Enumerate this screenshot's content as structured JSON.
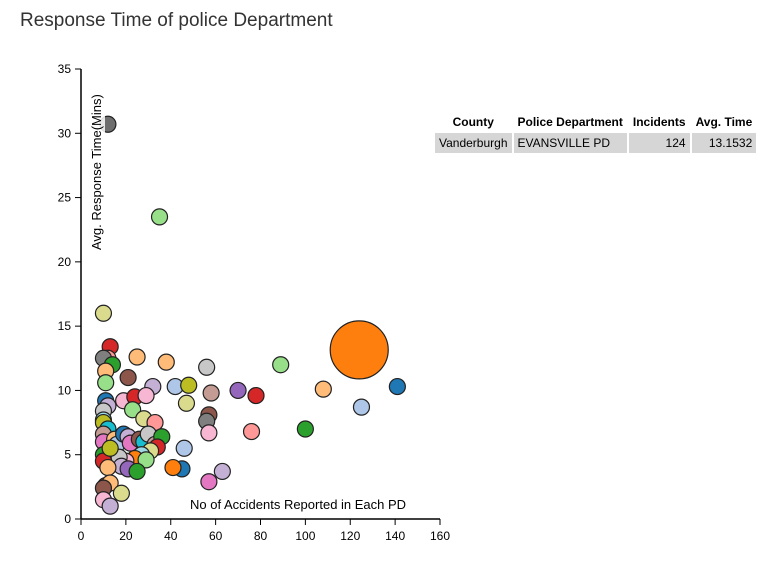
{
  "chart_data": {
    "type": "scatter",
    "title": "Response Time of police Department",
    "xlabel": "No of Accidents Reported in Each PD",
    "ylabel": "Avg. Response Time(Mins)",
    "xlim": [
      0,
      160
    ],
    "ylim": [
      0,
      35
    ],
    "xticks": [
      0,
      20,
      40,
      60,
      80,
      100,
      120,
      140,
      160
    ],
    "yticks": [
      0,
      5,
      10,
      15,
      20,
      25,
      30,
      35
    ],
    "grid": false,
    "points": [
      {
        "x": 12,
        "y": 30.7,
        "color": "#6e6e6e"
      },
      {
        "x": 35,
        "y": 23.5,
        "color": "#98df8a"
      },
      {
        "x": 10,
        "y": 16.0,
        "color": "#dbdb8d"
      },
      {
        "x": 13,
        "y": 13.4,
        "color": "#d62728"
      },
      {
        "x": 12,
        "y": 12.5,
        "color": "#ff9896"
      },
      {
        "x": 10,
        "y": 12.5,
        "color": "#7f7f7f"
      },
      {
        "x": 14,
        "y": 12.0,
        "color": "#2ca02c"
      },
      {
        "x": 11,
        "y": 11.5,
        "color": "#ffbb78"
      },
      {
        "x": 11,
        "y": 10.6,
        "color": "#98df8a"
      },
      {
        "x": 25,
        "y": 12.6,
        "color": "#ffbb78"
      },
      {
        "x": 38,
        "y": 12.2,
        "color": "#ffbb78"
      },
      {
        "x": 56,
        "y": 11.8,
        "color": "#c7c7c7"
      },
      {
        "x": 89,
        "y": 12.0,
        "color": "#98df8a"
      },
      {
        "x": 21,
        "y": 11.0,
        "color": "#8c564b"
      },
      {
        "x": 32,
        "y": 10.3,
        "color": "#c5b0d5"
      },
      {
        "x": 42,
        "y": 10.3,
        "color": "#aec7e8"
      },
      {
        "x": 48,
        "y": 10.4,
        "color": "#bcbd22"
      },
      {
        "x": 58,
        "y": 9.8,
        "color": "#c49c94"
      },
      {
        "x": 70,
        "y": 10.0,
        "color": "#9467bd"
      },
      {
        "x": 78,
        "y": 9.6,
        "color": "#d62728"
      },
      {
        "x": 108,
        "y": 10.1,
        "color": "#ffbb78"
      },
      {
        "x": 141,
        "y": 10.3,
        "color": "#1f77b4"
      },
      {
        "x": 125,
        "y": 8.7,
        "color": "#aec7e8"
      },
      {
        "x": 124,
        "y": 13.1532,
        "color": "#ff7f0e",
        "highlight": true
      },
      {
        "x": 11,
        "y": 9.2,
        "color": "#1f77b4"
      },
      {
        "x": 12,
        "y": 8.8,
        "color": "#c5b0d5"
      },
      {
        "x": 10,
        "y": 8.4,
        "color": "#c7c7c7"
      },
      {
        "x": 19,
        "y": 9.2,
        "color": "#f7b6d2"
      },
      {
        "x": 24,
        "y": 9.5,
        "color": "#d62728"
      },
      {
        "x": 29,
        "y": 9.6,
        "color": "#f7b6d2"
      },
      {
        "x": 23,
        "y": 8.5,
        "color": "#98df8a"
      },
      {
        "x": 28,
        "y": 7.8,
        "color": "#dbdb8d"
      },
      {
        "x": 33,
        "y": 7.5,
        "color": "#ff9896"
      },
      {
        "x": 47,
        "y": 9.0,
        "color": "#dbdb8d"
      },
      {
        "x": 57,
        "y": 8.1,
        "color": "#8c564b"
      },
      {
        "x": 56,
        "y": 7.6,
        "color": "#7f7f7f"
      },
      {
        "x": 57,
        "y": 6.7,
        "color": "#f7b6d2"
      },
      {
        "x": 76,
        "y": 6.8,
        "color": "#ff9896"
      },
      {
        "x": 100,
        "y": 7.0,
        "color": "#2ca02c"
      },
      {
        "x": 10,
        "y": 7.7,
        "color": "#9edae5"
      },
      {
        "x": 10,
        "y": 7.5,
        "color": "#bcbd22"
      },
      {
        "x": 12,
        "y": 7.0,
        "color": "#17becf"
      },
      {
        "x": 10,
        "y": 6.6,
        "color": "#c49c94"
      },
      {
        "x": 10,
        "y": 6.0,
        "color": "#e377c2"
      },
      {
        "x": 15,
        "y": 6.2,
        "color": "#ffbb78"
      },
      {
        "x": 16,
        "y": 5.8,
        "color": "#aec7e8"
      },
      {
        "x": 19,
        "y": 6.6,
        "color": "#1f77b4"
      },
      {
        "x": 21,
        "y": 6.4,
        "color": "#c5b0d5"
      },
      {
        "x": 22,
        "y": 5.9,
        "color": "#e377c2"
      },
      {
        "x": 26,
        "y": 6.2,
        "color": "#8c564b"
      },
      {
        "x": 28,
        "y": 6.0,
        "color": "#17becf"
      },
      {
        "x": 30,
        "y": 6.6,
        "color": "#c7c7c7"
      },
      {
        "x": 33,
        "y": 5.8,
        "color": "#c49c94"
      },
      {
        "x": 36,
        "y": 6.4,
        "color": "#2ca02c"
      },
      {
        "x": 34,
        "y": 5.6,
        "color": "#d62728"
      },
      {
        "x": 31,
        "y": 5.3,
        "color": "#dbdb8d"
      },
      {
        "x": 27,
        "y": 5.0,
        "color": "#9edae5"
      },
      {
        "x": 24,
        "y": 4.7,
        "color": "#ff7f0e"
      },
      {
        "x": 29,
        "y": 4.6,
        "color": "#98df8a"
      },
      {
        "x": 20,
        "y": 4.5,
        "color": "#f7b6d2"
      },
      {
        "x": 17,
        "y": 4.8,
        "color": "#c7c7c7"
      },
      {
        "x": 18,
        "y": 4.1,
        "color": "#c5b0d5"
      },
      {
        "x": 21,
        "y": 3.9,
        "color": "#9467bd"
      },
      {
        "x": 25,
        "y": 3.7,
        "color": "#2ca02c"
      },
      {
        "x": 10,
        "y": 5.0,
        "color": "#2ca02c"
      },
      {
        "x": 10,
        "y": 4.5,
        "color": "#d62728"
      },
      {
        "x": 12,
        "y": 4.0,
        "color": "#ffbb78"
      },
      {
        "x": 13,
        "y": 5.5,
        "color": "#bcbd22"
      },
      {
        "x": 46,
        "y": 5.5,
        "color": "#aec7e8"
      },
      {
        "x": 45,
        "y": 3.9,
        "color": "#1f77b4"
      },
      {
        "x": 41,
        "y": 4.0,
        "color": "#ff7f0e"
      },
      {
        "x": 63,
        "y": 3.7,
        "color": "#c5b0d5"
      },
      {
        "x": 57,
        "y": 2.9,
        "color": "#e377c2"
      },
      {
        "x": 11,
        "y": 2.6,
        "color": "#8c564b"
      },
      {
        "x": 13,
        "y": 2.8,
        "color": "#ffbb78"
      },
      {
        "x": 10,
        "y": 2.4,
        "color": "#8c564b"
      },
      {
        "x": 18,
        "y": 2.0,
        "color": "#dbdb8d"
      },
      {
        "x": 10,
        "y": 1.5,
        "color": "#f7b6d2"
      },
      {
        "x": 13,
        "y": 1.0,
        "color": "#c5b0d5"
      }
    ]
  },
  "tooltip_table": {
    "headers": [
      "County",
      "Police Department",
      "Incidents",
      "Avg. Time"
    ],
    "row": [
      "Vanderburgh",
      "EVANSVILLE PD",
      "124",
      "13.1532"
    ]
  }
}
